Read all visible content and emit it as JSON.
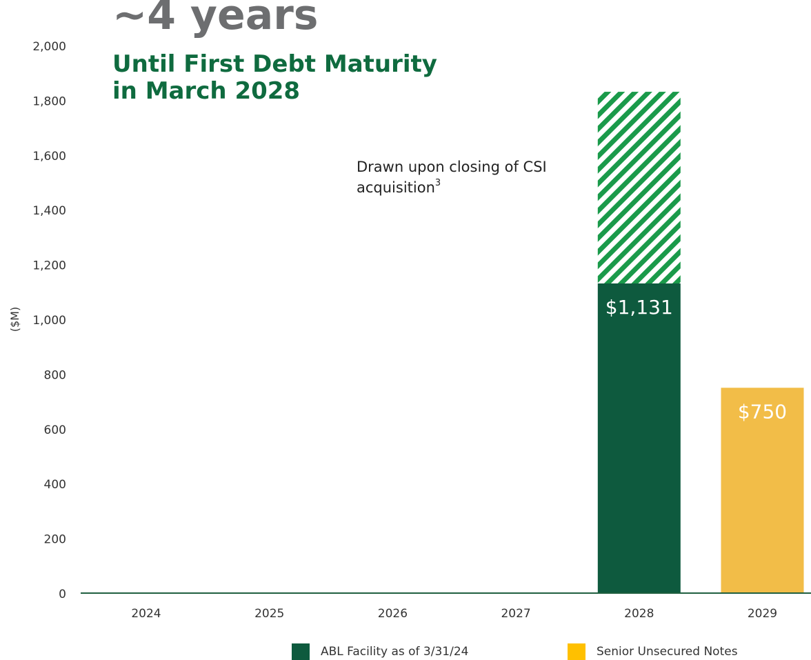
{
  "headline": {
    "value": "~4 years",
    "line1": "Until First Debt Maturity",
    "line2": "in March 2028"
  },
  "annotation": {
    "line1": "Drawn upon closing of CSI",
    "line2": "acquisition",
    "superscript": "3"
  },
  "colors": {
    "abl": "#0e5a3e",
    "abl_hatch": "#1a9a4a",
    "notes": "#f2bd48",
    "notes_legend": "#ffc000",
    "axis": "#1f5f3f",
    "tick_text": "#333333"
  },
  "chart_data": {
    "type": "bar",
    "stacked": true,
    "ylabel": "($M)",
    "ylim": [
      0,
      2000
    ],
    "yticks": [
      0,
      200,
      400,
      600,
      800,
      1000,
      1200,
      1400,
      1600,
      1800,
      2000
    ],
    "ytick_labels": [
      "0",
      "200",
      "400",
      "600",
      "800",
      "1,000",
      "1,200",
      "1,400",
      "1,600",
      "1,800",
      "2,000"
    ],
    "categories": [
      "2024",
      "2025",
      "2026",
      "2027",
      "2028",
      "2029"
    ],
    "series": [
      {
        "name": "ABL Facility as of 3/31/24",
        "values": [
          0,
          0,
          0,
          0,
          1131,
          0
        ],
        "labels": [
          "",
          "",
          "",
          "",
          "$1,131",
          ""
        ]
      },
      {
        "values": [
          0,
          0,
          0,
          0,
          700,
          0
        ],
        "pattern": "hatched"
      },
      {
        "name": "Senior Unsecured Notes",
        "values": [
          0,
          0,
          0,
          0,
          0,
          750
        ],
        "labels": [
          "",
          "",
          "",
          "",
          "",
          "$750"
        ]
      }
    ],
    "legend": "bottom"
  }
}
